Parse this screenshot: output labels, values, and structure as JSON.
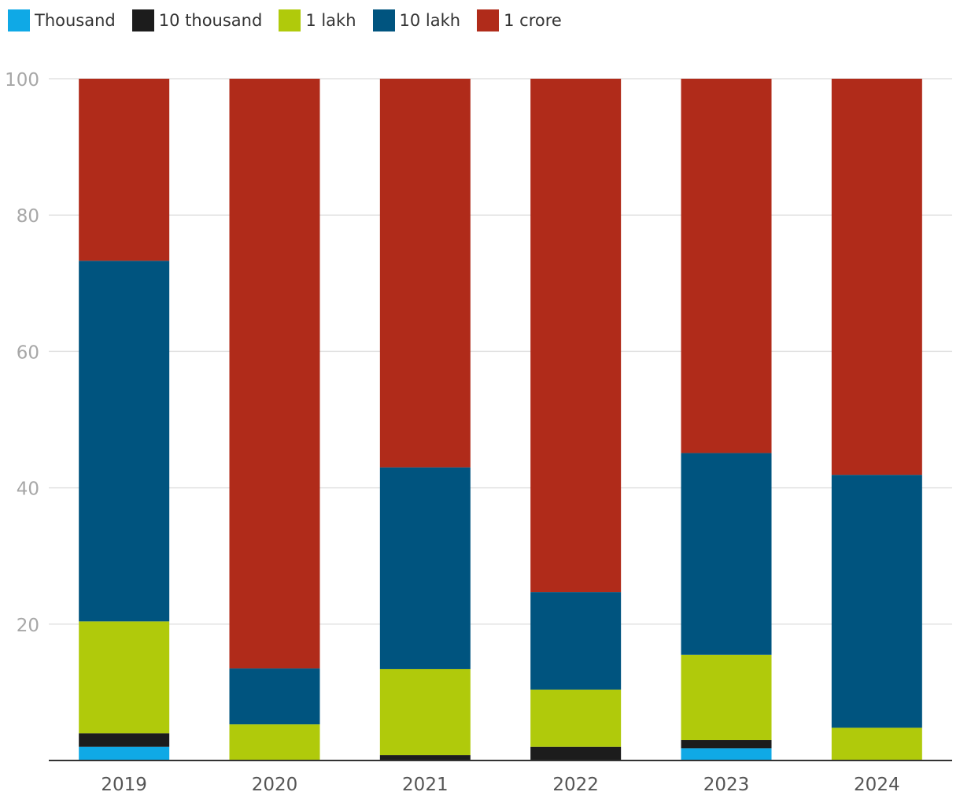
{
  "chart_data": {
    "type": "bar",
    "stacked": true,
    "categories": [
      "2019",
      "2020",
      "2021",
      "2022",
      "2023",
      "2024"
    ],
    "series": [
      {
        "name": "Thousand",
        "color": "#0fa9e6",
        "values": [
          2.0,
          0.0,
          0.0,
          0.0,
          1.8,
          0.0
        ]
      },
      {
        "name": "10 thousand",
        "color": "#1c1c1c",
        "values": [
          2.0,
          0.0,
          0.8,
          2.0,
          1.2,
          0.0
        ]
      },
      {
        "name": "1 lakh",
        "color": "#b0ca0b",
        "values": [
          16.4,
          5.3,
          12.6,
          8.4,
          12.5,
          4.8
        ]
      },
      {
        "name": "10 lakh",
        "color": "#00547f",
        "values": [
          52.9,
          8.2,
          29.6,
          14.3,
          29.6,
          37.1
        ]
      },
      {
        "name": "1 crore",
        "color": "#b02b1a",
        "values": [
          26.7,
          86.5,
          57.0,
          75.3,
          54.9,
          58.1
        ]
      }
    ],
    "yticks": [
      0,
      20,
      40,
      60,
      80,
      100
    ],
    "ytick_labels": [
      "",
      "20",
      "40",
      "60",
      "80",
      "100"
    ],
    "ylim": [
      0,
      100
    ],
    "grid": true,
    "legend_position": "top-left"
  }
}
